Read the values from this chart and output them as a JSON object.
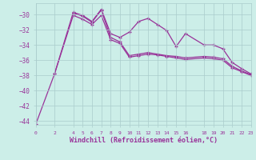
{
  "xlabel": "Windchill (Refroidissement éolien,°C)",
  "bg_color": "#cceee8",
  "grid_color": "#aacccc",
  "line_color": "#993399",
  "x_ticks": [
    0,
    2,
    4,
    5,
    6,
    7,
    8,
    9,
    10,
    11,
    12,
    13,
    14,
    15,
    16,
    18,
    19,
    20,
    21,
    22,
    23
  ],
  "ylim": [
    -44.5,
    -28.5
  ],
  "xlim": [
    0,
    23
  ],
  "yticks": [
    -44,
    -42,
    -40,
    -38,
    -36,
    -34,
    -32,
    -30
  ],
  "series1_x": [
    0,
    2,
    4,
    5,
    6,
    7,
    8,
    9,
    10,
    11,
    12,
    13,
    14,
    15,
    16,
    18,
    19,
    20,
    21,
    22,
    23
  ],
  "series1_y": [
    -44.4,
    -37.8,
    -29.7,
    -30.1,
    -30.9,
    -29.3,
    -32.5,
    -33.0,
    -32.3,
    -30.9,
    -30.5,
    -31.3,
    -32.1,
    -34.2,
    -32.5,
    -34.0,
    -34.0,
    -34.5,
    -36.3,
    -37.1,
    -37.8
  ],
  "series2_x": [
    4,
    5,
    6,
    7,
    8,
    9,
    10,
    11,
    12,
    13,
    14,
    15,
    16,
    18,
    19,
    20,
    21,
    22,
    23
  ],
  "series2_y": [
    -29.8,
    -30.2,
    -31.0,
    -29.4,
    -33.0,
    -33.6,
    -35.4,
    -35.2,
    -35.0,
    -35.2,
    -35.4,
    -35.5,
    -35.7,
    -35.5,
    -35.6,
    -35.8,
    -36.8,
    -37.4,
    -37.9
  ],
  "series3_x": [
    2,
    4,
    5,
    6,
    7,
    8,
    9,
    10,
    11,
    12,
    13,
    14,
    15,
    16,
    18,
    19,
    20,
    21,
    22,
    23
  ],
  "series3_y": [
    -37.8,
    -30.1,
    -30.6,
    -31.3,
    -30.1,
    -33.3,
    -33.8,
    -35.6,
    -35.4,
    -35.2,
    -35.3,
    -35.5,
    -35.7,
    -35.9,
    -35.7,
    -35.8,
    -36.0,
    -37.0,
    -37.5,
    -38.0
  ]
}
